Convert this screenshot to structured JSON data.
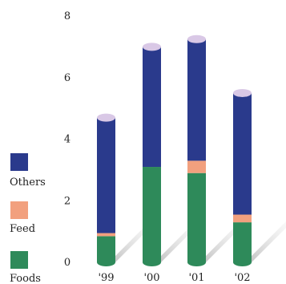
{
  "chart_data": {
    "type": "bar",
    "stacked": true,
    "categories": [
      "'99",
      "'00",
      "'01",
      "'02"
    ],
    "series": [
      {
        "name": "Foods",
        "color": "#2e8a5a",
        "values": [
          0.85,
          3.1,
          2.9,
          1.3
        ]
      },
      {
        "name": "Feed",
        "color": "#f2a07e",
        "values": [
          0.1,
          0.0,
          0.4,
          0.25
        ]
      },
      {
        "name": "Others",
        "color": "#2a3a8c",
        "values": [
          3.75,
          3.9,
          3.95,
          3.95
        ]
      }
    ],
    "cap_color": "#d9c8e6",
    "y_ticks": [
      "0",
      "2",
      "4",
      "6",
      "8"
    ],
    "ylim": [
      0,
      8
    ],
    "grid": false,
    "legend": {
      "position": "left",
      "order": [
        "Others",
        "Feed",
        "Foods"
      ]
    },
    "title": "",
    "xlabel": "",
    "ylabel": ""
  }
}
